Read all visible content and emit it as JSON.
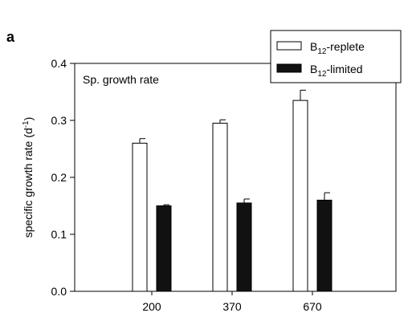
{
  "panel_label": "a",
  "chart_data": {
    "type": "bar",
    "title": "",
    "annotation": "Sp. growth rate",
    "xlabel": "",
    "ylabel": "specific growth rate (d",
    "ylabel_sup": "-1",
    "ylabel_close": ")",
    "categories": [
      "200",
      "370",
      "670"
    ],
    "ylim": [
      0,
      0.4
    ],
    "yticks": [
      "0.0",
      "0.1",
      "0.2",
      "0.3",
      "0.4"
    ],
    "grid": false,
    "legend_position": "top-right",
    "series": [
      {
        "name": "B12-replete",
        "name_parts": {
          "pre": "B",
          "sub": "12",
          "post": "-replete"
        },
        "fill": "#ffffff",
        "values": [
          0.26,
          0.295,
          0.335
        ],
        "errors": [
          0.008,
          0.006,
          0.018
        ]
      },
      {
        "name": "B12-limited",
        "name_parts": {
          "pre": "B",
          "sub": "12",
          "post": "-limited"
        },
        "fill": "#111111",
        "values": [
          0.15,
          0.155,
          0.16
        ],
        "errors": [
          0.002,
          0.007,
          0.013
        ]
      }
    ]
  }
}
